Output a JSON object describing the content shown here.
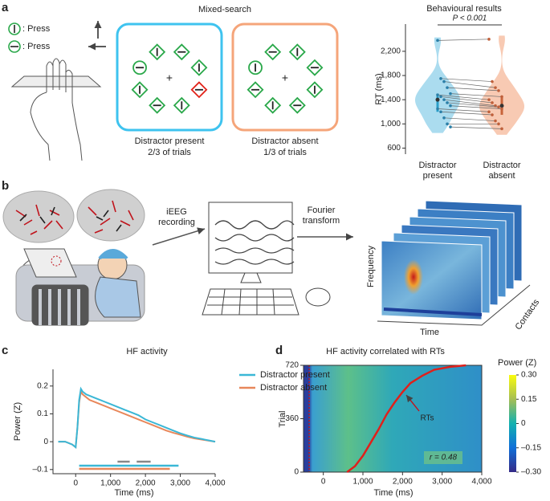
{
  "panel_labels": [
    "a",
    "b",
    "c",
    "d"
  ],
  "task": {
    "legend": [
      ": Press",
      ": Press"
    ],
    "title": "Mixed-search",
    "conditions": [
      {
        "name": "Distractor present",
        "trials": "2/3 of trials"
      },
      {
        "name": "Distractor absent",
        "trials": "1/3 of trials"
      }
    ]
  },
  "pipeline": {
    "recording": "iEEG recording",
    "transform": "Fourier transform",
    "freq_axis": "Frequency",
    "time_axis": "Time",
    "contacts_axis": "Contacts"
  },
  "chart_data": [
    {
      "type": "violin",
      "title": "Behavioural results",
      "annotation": "P < 0.001",
      "y_label": "RT (ms)",
      "ylim": [
        500,
        2650
      ],
      "yticks": [
        600,
        {
          "value": 1000,
          "label": "1,000"
        },
        {
          "value": 1400,
          "label": "1,400"
        },
        {
          "value": 1800,
          "label": "1,800"
        },
        {
          "value": 2200,
          "label": "2,200"
        }
      ],
      "series": [
        {
          "name": "Distractor present",
          "color": "#8fd0ea",
          "values": [
            2380,
            1750,
            1700,
            1600,
            1500,
            1480,
            1450,
            1400,
            1350,
            1300,
            1250,
            1200,
            1100,
            1000,
            950
          ]
        },
        {
          "name": "Distractor absent",
          "color": "#f5b899",
          "values": [
            2400,
            1700,
            1600,
            1550,
            1450,
            1400,
            1350,
            1300,
            1280,
            1250,
            1200,
            1150,
            1050,
            1000,
            920
          ]
        }
      ]
    },
    {
      "type": "line",
      "title": "HF activity",
      "x_label": "Time (ms)",
      "y_label": "Power (Z)",
      "xlim": [
        -650,
        4000
      ],
      "ylim": [
        -0.115,
        0.26
      ],
      "xticks": [
        0,
        {
          "value": 1000,
          "label": "1,000"
        },
        {
          "value": 2000,
          "label": "2,000"
        },
        {
          "value": 3000,
          "label": "3,000"
        },
        {
          "value": 4000,
          "label": "4,000"
        }
      ],
      "yticks": [
        {
          "value": -0.1,
          "label": "–0.1"
        },
        0,
        0.1,
        0.2
      ],
      "x": [
        -500,
        -300,
        -100,
        0,
        50,
        100,
        150,
        200,
        300,
        400,
        600,
        800,
        1000,
        1200,
        1400,
        1600,
        1800,
        2000,
        2200,
        2400,
        2600,
        2800,
        3000,
        3200,
        3400,
        3600,
        3800,
        4000
      ],
      "series": [
        {
          "name": "Distractor present",
          "color": "#3ab7d6",
          "values": [
            0.0,
            0.0,
            -0.01,
            -0.02,
            0.05,
            0.15,
            0.19,
            0.18,
            0.17,
            0.165,
            0.155,
            0.145,
            0.135,
            0.125,
            0.115,
            0.105,
            0.095,
            0.08,
            0.07,
            0.06,
            0.05,
            0.04,
            0.03,
            0.022,
            0.015,
            0.01,
            0.005,
            0.0
          ]
        },
        {
          "name": "Distractor absent",
          "color": "#e8875a",
          "values": [
            0.0,
            0.0,
            -0.01,
            -0.02,
            0.05,
            0.14,
            0.18,
            0.17,
            0.16,
            0.15,
            0.14,
            0.13,
            0.12,
            0.11,
            0.1,
            0.09,
            0.08,
            0.07,
            0.06,
            0.05,
            0.04,
            0.032,
            0.025,
            0.018,
            0.012,
            0.008,
            0.004,
            0.0
          ]
        }
      ],
      "significance": [
        {
          "color": "#888888",
          "start": 1200,
          "end": 1550
        },
        {
          "color": "#888888",
          "start": 1750,
          "end": 2150
        },
        {
          "color": "#3ab7d6",
          "start": 100,
          "end": 2950
        },
        {
          "color": "#e8875a",
          "start": 100,
          "end": 2700
        }
      ]
    },
    {
      "type": "heatmap",
      "title": "HF activity correlated with RTs",
      "x_label": "Time (ms)",
      "y_label": "Trial",
      "xlim": [
        -500,
        4000
      ],
      "ylim": [
        0,
        720
      ],
      "xticks": [
        0,
        {
          "value": 1000,
          "label": "1,000"
        },
        {
          "value": 2000,
          "label": "2,000"
        },
        {
          "value": 3000,
          "label": "3,000"
        },
        {
          "value": 4000,
          "label": "4,000"
        }
      ],
      "yticks": [
        0,
        360,
        720
      ],
      "colorbar_label": "Power (Z)",
      "clim": [
        -0.3,
        0.3
      ],
      "cticks": [
        {
          "value": -0.3,
          "label": "–0.30"
        },
        {
          "value": -0.15,
          "label": "–0.15"
        },
        0,
        0.15,
        {
          "value": 0.3,
          "label": "0.30"
        }
      ],
      "annotations": [
        "RTs",
        "r = 0.48"
      ],
      "rt_curve": {
        "color": "#e0201b",
        "x": [
          600,
          800,
          1000,
          1200,
          1400,
          1600,
          1800,
          2000,
          2200,
          2500,
          2800,
          3200,
          3600
        ],
        "y": [
          0,
          40,
          110,
          200,
          290,
          390,
          470,
          540,
          600,
          650,
          690,
          710,
          720
        ]
      }
    }
  ]
}
